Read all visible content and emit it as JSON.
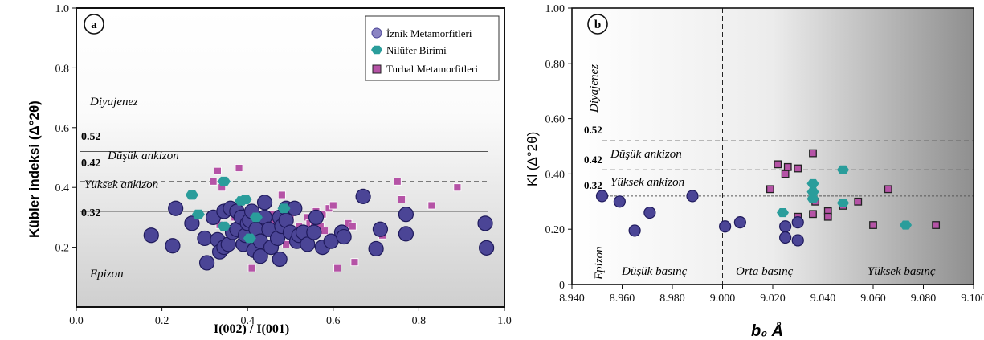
{
  "chart_data": [
    {
      "panel_label": "a",
      "type": "scatter",
      "xlabel": "I(002) / I(001)",
      "ylabel": "Kübler indeksi (Δ°2θ)",
      "xlim": [
        0.0,
        1.0
      ],
      "ylim": [
        0.0,
        1.0
      ],
      "x_ticks": [
        "0.0",
        "0.2",
        "0.4",
        "0.6",
        "0.8",
        "1.0"
      ],
      "y_ticks": [
        "0.2",
        "0.4",
        "0.6",
        "0.8",
        "1.0"
      ],
      "legend_position": "top-right",
      "zones": {
        "diyajenez": "Diyajenez",
        "dusuk_ankizon": "Düşük ankizon",
        "yuksek_ankizon": "Yüksek ankizon",
        "epizon": "Epizon"
      },
      "boundaries": [
        {
          "label": "0.52",
          "y": 0.52,
          "style": "solid"
        },
        {
          "label": "0.42",
          "y": 0.42,
          "style": "dashed"
        },
        {
          "label": "0.32",
          "y": 0.32,
          "style": "solid"
        }
      ],
      "series": [
        {
          "name": "İznik Metamorfitleri",
          "marker": "circle",
          "color": "#4b4596",
          "points": [
            [
              0.175,
              0.24
            ],
            [
              0.225,
              0.205
            ],
            [
              0.232,
              0.33
            ],
            [
              0.27,
              0.28
            ],
            [
              0.3,
              0.23
            ],
            [
              0.305,
              0.148
            ],
            [
              0.32,
              0.3
            ],
            [
              0.33,
              0.225
            ],
            [
              0.335,
              0.185
            ],
            [
              0.345,
              0.2
            ],
            [
              0.345,
              0.32
            ],
            [
              0.355,
              0.21
            ],
            [
              0.36,
              0.33
            ],
            [
              0.365,
              0.25
            ],
            [
              0.375,
              0.32
            ],
            [
              0.375,
              0.26
            ],
            [
              0.385,
              0.3
            ],
            [
              0.39,
              0.21
            ],
            [
              0.395,
              0.24
            ],
            [
              0.4,
              0.28
            ],
            [
              0.405,
              0.29
            ],
            [
              0.41,
              0.32
            ],
            [
              0.415,
              0.19
            ],
            [
              0.42,
              0.26
            ],
            [
              0.43,
              0.22
            ],
            [
              0.43,
              0.17
            ],
            [
              0.44,
              0.35
            ],
            [
              0.44,
              0.3
            ],
            [
              0.45,
              0.26
            ],
            [
              0.455,
              0.2
            ],
            [
              0.47,
              0.23
            ],
            [
              0.475,
              0.3
            ],
            [
              0.475,
              0.16
            ],
            [
              0.48,
              0.27
            ],
            [
              0.49,
              0.33
            ],
            [
              0.49,
              0.29
            ],
            [
              0.5,
              0.25
            ],
            [
              0.51,
              0.33
            ],
            [
              0.515,
              0.22
            ],
            [
              0.52,
              0.24
            ],
            [
              0.53,
              0.25
            ],
            [
              0.54,
              0.21
            ],
            [
              0.555,
              0.25
            ],
            [
              0.56,
              0.3
            ],
            [
              0.575,
              0.2
            ],
            [
              0.595,
              0.22
            ],
            [
              0.62,
              0.25
            ],
            [
              0.625,
              0.235
            ],
            [
              0.67,
              0.37
            ],
            [
              0.7,
              0.195
            ],
            [
              0.71,
              0.26
            ],
            [
              0.77,
              0.31
            ],
            [
              0.77,
              0.245
            ],
            [
              0.955,
              0.28
            ],
            [
              0.958,
              0.198
            ]
          ]
        },
        {
          "name": "Nilüfer Birimi",
          "marker": "hexagon",
          "color": "#2a9d9b",
          "points": [
            [
              0.27,
              0.375
            ],
            [
              0.285,
              0.31
            ],
            [
              0.345,
              0.42
            ],
            [
              0.345,
              0.27
            ],
            [
              0.385,
              0.355
            ],
            [
              0.395,
              0.36
            ],
            [
              0.405,
              0.23
            ],
            [
              0.42,
              0.3
            ],
            [
              0.485,
              0.33
            ]
          ]
        },
        {
          "name": "Turhal Metamorfitleri",
          "marker": "square",
          "color": "#b553a6",
          "points": [
            [
              0.32,
              0.42
            ],
            [
              0.33,
              0.455
            ],
            [
              0.34,
              0.4
            ],
            [
              0.335,
              0.275
            ],
            [
              0.345,
              0.315
            ],
            [
              0.37,
              0.3
            ],
            [
              0.38,
              0.465
            ],
            [
              0.39,
              0.25
            ],
            [
              0.41,
              0.13
            ],
            [
              0.415,
              0.295
            ],
            [
              0.42,
              0.24
            ],
            [
              0.43,
              0.27
            ],
            [
              0.44,
              0.265
            ],
            [
              0.45,
              0.26
            ],
            [
              0.455,
              0.31
            ],
            [
              0.46,
              0.28
            ],
            [
              0.47,
              0.25
            ],
            [
              0.48,
              0.375
            ],
            [
              0.485,
              0.26
            ],
            [
              0.49,
              0.21
            ],
            [
              0.5,
              0.3
            ],
            [
              0.505,
              0.24
            ],
            [
              0.51,
              0.21
            ],
            [
              0.52,
              0.27
            ],
            [
              0.53,
              0.25
            ],
            [
              0.54,
              0.3
            ],
            [
              0.545,
              0.28
            ],
            [
              0.55,
              0.255
            ],
            [
              0.555,
              0.275
            ],
            [
              0.56,
              0.32
            ],
            [
              0.565,
              0.3
            ],
            [
              0.57,
              0.27
            ],
            [
              0.575,
              0.31
            ],
            [
              0.58,
              0.255
            ],
            [
              0.59,
              0.33
            ],
            [
              0.6,
              0.34
            ],
            [
              0.61,
              0.13
            ],
            [
              0.635,
              0.28
            ],
            [
              0.645,
              0.27
            ],
            [
              0.65,
              0.15
            ],
            [
              0.715,
              0.24
            ],
            [
              0.75,
              0.42
            ],
            [
              0.76,
              0.36
            ],
            [
              0.83,
              0.34
            ],
            [
              0.89,
              0.4
            ]
          ]
        }
      ]
    },
    {
      "panel_label": "b",
      "type": "scatter",
      "xlabel": "b₀ Å",
      "ylabel": "Kl (Δ°2θ)",
      "xlim": [
        8.94,
        9.1
      ],
      "ylim": [
        0.0,
        1.0
      ],
      "x_ticks": [
        "8.940",
        "8.960",
        "8.980",
        "9.000",
        "9.020",
        "9.040",
        "9.060",
        "9.080",
        "9.100"
      ],
      "y_ticks": [
        "0",
        "0.20",
        "0.40",
        "0.60",
        "0.80",
        "1.00"
      ],
      "zones": {
        "diyajenez": "Diyajenez",
        "dusuk_ankizon": "Düşük ankizon",
        "yuksek_ankizon": "Yüksek ankizon",
        "epizon": "Epizon"
      },
      "pressure_zones": [
        "Düşük basınç",
        "Orta basınç",
        "Yüksek basınç"
      ],
      "vertical_boundaries": [
        9.0,
        9.04
      ],
      "boundaries": [
        {
          "label": "0.52",
          "y": 0.52,
          "style": "dashed"
        },
        {
          "label": "0.42",
          "y": 0.415,
          "style": "dashed"
        },
        {
          "label": "0.32",
          "y": 0.32,
          "style": "dotted"
        }
      ],
      "series": [
        {
          "name": "İznik Metamorfitleri",
          "marker": "circle",
          "color": "#4b4596",
          "points": [
            [
              8.952,
              0.32
            ],
            [
              8.959,
              0.3
            ],
            [
              8.965,
              0.195
            ],
            [
              8.971,
              0.26
            ],
            [
              8.988,
              0.32
            ],
            [
              9.001,
              0.21
            ],
            [
              9.007,
              0.225
            ],
            [
              9.025,
              0.21
            ],
            [
              9.025,
              0.17
            ],
            [
              9.03,
              0.225
            ],
            [
              9.03,
              0.16
            ]
          ]
        },
        {
          "name": "Nilüfer Birimi",
          "marker": "hexagon",
          "color": "#2a9d9b",
          "points": [
            [
              9.024,
              0.26
            ],
            [
              9.036,
              0.365
            ],
            [
              9.036,
              0.335
            ],
            [
              9.036,
              0.31
            ],
            [
              9.048,
              0.415
            ],
            [
              9.048,
              0.295
            ],
            [
              9.073,
              0.215
            ]
          ]
        },
        {
          "name": "Turhal Metamorfitleri",
          "marker": "square",
          "color": "#b553a6",
          "points": [
            [
              9.019,
              0.345
            ],
            [
              9.022,
              0.435
            ],
            [
              9.025,
              0.4
            ],
            [
              9.026,
              0.425
            ],
            [
              9.03,
              0.42
            ],
            [
              9.03,
              0.245
            ],
            [
              9.036,
              0.475
            ],
            [
              9.036,
              0.255
            ],
            [
              9.037,
              0.3
            ],
            [
              9.042,
              0.265
            ],
            [
              9.042,
              0.245
            ],
            [
              9.048,
              0.285
            ],
            [
              9.054,
              0.3
            ],
            [
              9.06,
              0.215
            ],
            [
              9.066,
              0.345
            ],
            [
              9.085,
              0.215
            ]
          ]
        }
      ]
    }
  ]
}
